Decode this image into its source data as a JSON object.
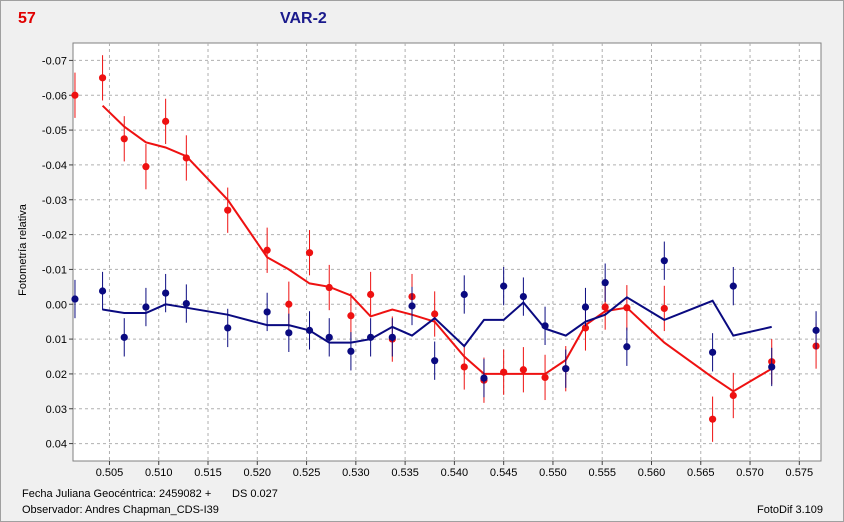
{
  "header": {
    "number": "57",
    "title": "VAR-2"
  },
  "footer": {
    "jd_label": "Fecha Juliana Geocéntrica: 2459082 +",
    "ds": "DS 0.027",
    "observer": "Observador: Andres Chapman_CDS-I39",
    "software": "FotoDif 3.109"
  },
  "colors": {
    "red_series": "#ee1111",
    "blue_series": "#0a0a80",
    "grid": "#b0b0b0"
  },
  "chart_data": {
    "type": "scatter",
    "ylabel": "Fotometría relativa",
    "xlabel": "",
    "xlim": [
      0.5013,
      0.5772
    ],
    "ylim": [
      0.045,
      -0.075
    ],
    "y_inverted": true,
    "grid": true,
    "x_ticks": [
      "0.505",
      "0.510",
      "0.515",
      "0.520",
      "0.525",
      "0.530",
      "0.535",
      "0.540",
      "0.545",
      "0.550",
      "0.555",
      "0.560",
      "0.565",
      "0.570",
      "0.575"
    ],
    "y_ticks": [
      "-0.07",
      "-0.06",
      "-0.05",
      "-0.04",
      "-0.03",
      "-0.02",
      "-0.01",
      "0.00",
      "0.01",
      "0.02",
      "0.03",
      "0.04"
    ],
    "series": [
      {
        "color": "red",
        "points": [
          [
            0.5015,
            -0.06,
            0.0065
          ],
          [
            0.5043,
            -0.065,
            0.0065
          ],
          [
            0.5065,
            -0.0475,
            0.0065
          ],
          [
            0.5087,
            -0.0395,
            0.0065
          ],
          [
            0.5107,
            -0.0525,
            0.0065
          ],
          [
            0.5128,
            -0.042,
            0.0065
          ],
          [
            0.517,
            -0.027,
            0.0065
          ],
          [
            0.521,
            -0.0155,
            0.0065
          ],
          [
            0.5232,
            0.0,
            0.0065
          ],
          [
            0.5253,
            -0.0148,
            0.0065
          ],
          [
            0.5273,
            -0.0048,
            0.0065
          ],
          [
            0.5295,
            0.0033,
            0.0065
          ],
          [
            0.5315,
            -0.0028,
            0.0065
          ],
          [
            0.5337,
            0.01,
            0.0065
          ],
          [
            0.5357,
            -0.0022,
            0.0065
          ],
          [
            0.538,
            0.0028,
            0.0065
          ],
          [
            0.541,
            0.018,
            0.0065
          ],
          [
            0.543,
            0.0218,
            0.0065
          ],
          [
            0.545,
            0.0195,
            0.0065
          ],
          [
            0.547,
            0.0188,
            0.0065
          ],
          [
            0.5492,
            0.021,
            0.0065
          ],
          [
            0.5513,
            0.0185,
            0.0065
          ],
          [
            0.5533,
            0.0068,
            0.0065
          ],
          [
            0.5553,
            0.0008,
            0.0065
          ],
          [
            0.5575,
            0.001,
            0.0065
          ],
          [
            0.5613,
            0.0012,
            0.0065
          ],
          [
            0.5662,
            0.033,
            0.0065
          ],
          [
            0.5683,
            0.0262,
            0.0065
          ],
          [
            0.5722,
            0.0165,
            0.0065
          ],
          [
            0.5767,
            0.012,
            0.0065
          ]
        ],
        "trend": [
          [
            0.5043,
            -0.057
          ],
          [
            0.5065,
            -0.051
          ],
          [
            0.5087,
            -0.0465
          ],
          [
            0.5107,
            -0.045
          ],
          [
            0.5128,
            -0.0425
          ],
          [
            0.517,
            -0.03
          ],
          [
            0.521,
            -0.0135
          ],
          [
            0.5232,
            -0.01
          ],
          [
            0.5253,
            -0.006
          ],
          [
            0.5273,
            -0.005
          ],
          [
            0.5295,
            -0.0025
          ],
          [
            0.5315,
            0.0035
          ],
          [
            0.5337,
            0.0015
          ],
          [
            0.5357,
            0.003
          ],
          [
            0.538,
            0.005
          ],
          [
            0.541,
            0.015
          ],
          [
            0.543,
            0.02
          ],
          [
            0.545,
            0.02
          ],
          [
            0.547,
            0.02
          ],
          [
            0.5492,
            0.02
          ],
          [
            0.5513,
            0.016
          ],
          [
            0.5533,
            0.006
          ],
          [
            0.5553,
            0.002
          ],
          [
            0.5575,
            0.001
          ],
          [
            0.5613,
            0.011
          ],
          [
            0.5662,
            0.021
          ],
          [
            0.5683,
            0.025
          ],
          [
            0.5722,
            0.0185
          ]
        ]
      },
      {
        "color": "blue",
        "points": [
          [
            0.5015,
            -0.0015,
            0.0055
          ],
          [
            0.5043,
            -0.0038,
            0.0055
          ],
          [
            0.5065,
            0.0095,
            0.0055
          ],
          [
            0.5087,
            0.0008,
            0.0055
          ],
          [
            0.5107,
            -0.0032,
            0.0055
          ],
          [
            0.5128,
            -0.0002,
            0.0055
          ],
          [
            0.517,
            0.0068,
            0.0055
          ],
          [
            0.521,
            0.0022,
            0.0055
          ],
          [
            0.5232,
            0.0082,
            0.0055
          ],
          [
            0.5253,
            0.0075,
            0.0055
          ],
          [
            0.5273,
            0.0095,
            0.0055
          ],
          [
            0.5295,
            0.0135,
            0.0055
          ],
          [
            0.5315,
            0.0095,
            0.0055
          ],
          [
            0.5337,
            0.0095,
            0.0055
          ],
          [
            0.5357,
            0.0005,
            0.0055
          ],
          [
            0.538,
            0.0162,
            0.0055
          ],
          [
            0.541,
            -0.0028,
            0.0055
          ],
          [
            0.543,
            0.0212,
            0.0055
          ],
          [
            0.545,
            -0.0052,
            0.0055
          ],
          [
            0.547,
            -0.0022,
            0.0055
          ],
          [
            0.5492,
            0.0062,
            0.0055
          ],
          [
            0.5513,
            0.0185,
            0.0055
          ],
          [
            0.5533,
            0.0008,
            0.0055
          ],
          [
            0.5553,
            -0.0062,
            0.0055
          ],
          [
            0.5575,
            0.0122,
            0.0055
          ],
          [
            0.5613,
            -0.0125,
            0.0055
          ],
          [
            0.5662,
            0.0138,
            0.0055
          ],
          [
            0.5683,
            -0.0052,
            0.0055
          ],
          [
            0.5722,
            0.018,
            0.0055
          ],
          [
            0.5767,
            0.0075,
            0.0055
          ]
        ],
        "trend": [
          [
            0.5043,
            0.0015
          ],
          [
            0.5065,
            0.0025
          ],
          [
            0.5087,
            0.0025
          ],
          [
            0.5107,
            0.0
          ],
          [
            0.5128,
            0.001
          ],
          [
            0.517,
            0.003
          ],
          [
            0.521,
            0.006
          ],
          [
            0.5232,
            0.006
          ],
          [
            0.5253,
            0.0075
          ],
          [
            0.5273,
            0.011
          ],
          [
            0.5295,
            0.011
          ],
          [
            0.5315,
            0.01
          ],
          [
            0.5337,
            0.0065
          ],
          [
            0.5357,
            0.009
          ],
          [
            0.538,
            0.004
          ],
          [
            0.541,
            0.012
          ],
          [
            0.543,
            0.0045
          ],
          [
            0.545,
            0.0045
          ],
          [
            0.547,
            -0.0005
          ],
          [
            0.5492,
            0.007
          ],
          [
            0.5513,
            0.009
          ],
          [
            0.5533,
            0.005
          ],
          [
            0.5553,
            0.003
          ],
          [
            0.5575,
            -0.002
          ],
          [
            0.5613,
            0.0045
          ],
          [
            0.5662,
            -0.001
          ],
          [
            0.5683,
            0.009
          ],
          [
            0.5722,
            0.0065
          ]
        ]
      }
    ]
  }
}
